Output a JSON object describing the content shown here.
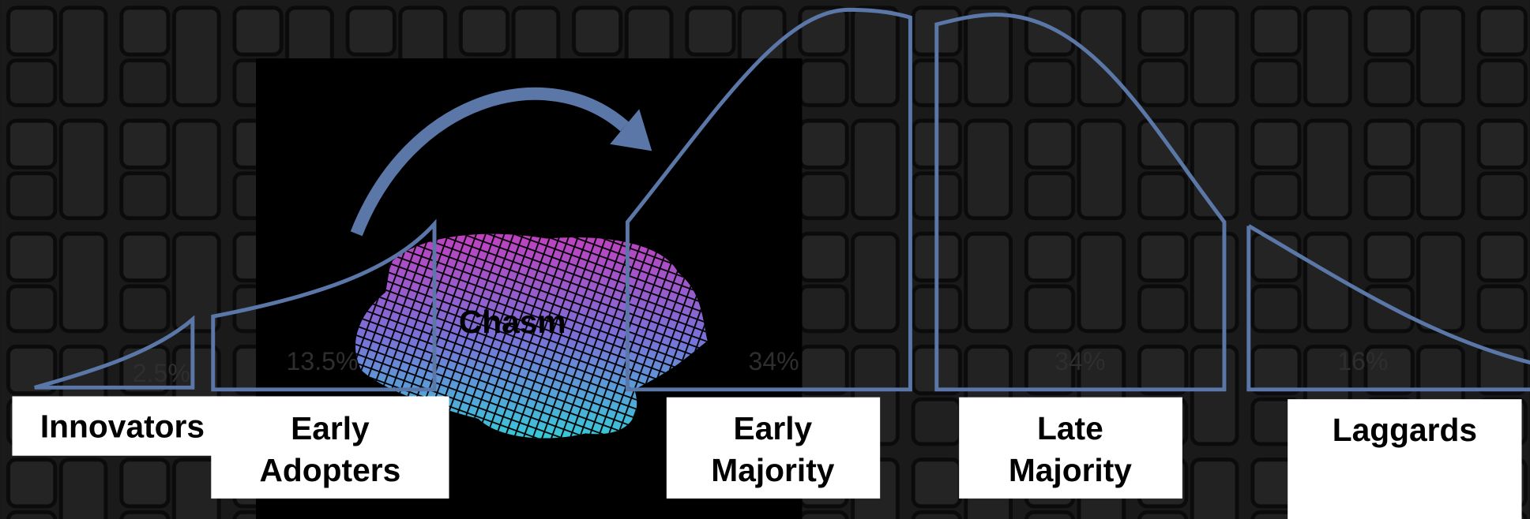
{
  "title_chasm": "Chasm",
  "segments": [
    {
      "label": "Innovators",
      "share": "2.5%"
    },
    {
      "label": "Early Adopters",
      "share": "13.5%"
    },
    {
      "label": "Early Majority",
      "share": "34%"
    },
    {
      "label": "Late Majority",
      "share": "34%"
    },
    {
      "label": "Laggards",
      "share": "16%"
    }
  ]
}
